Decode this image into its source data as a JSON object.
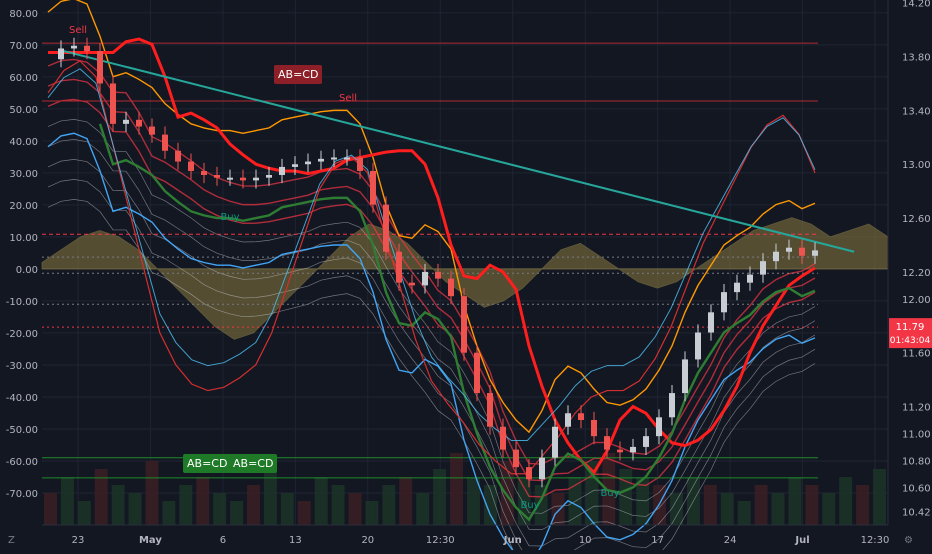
{
  "chart_data": {
    "type": "line",
    "theme": "dark",
    "left_axis": {
      "ticks": [
        "80.00",
        "70.00",
        "60.00",
        "50.00",
        "40.00",
        "30.00",
        "20.00",
        "10.00",
        "0.00",
        "-10.00",
        "-20.00",
        "-30.00",
        "-40.00",
        "-50.00",
        "-60.00",
        "-70.00"
      ],
      "range": [
        -80,
        84
      ]
    },
    "right_axis": {
      "ticks": [
        "14.20",
        "13.80",
        "13.40",
        "13.00",
        "12.60",
        "12.20",
        "12.00",
        "11.60",
        "11.20",
        "11.00",
        "10.80",
        "10.60",
        "10.42"
      ],
      "range": [
        10.32,
        14.22
      ],
      "last_price": "11.79",
      "countdown": "01:43:04"
    },
    "x_axis": {
      "ticks": [
        "23",
        "May",
        "6",
        "13",
        "20",
        "12:30",
        "Jun",
        "10",
        "17",
        "24",
        "Jul",
        "12:30"
      ]
    },
    "annotations": [
      {
        "text": "Sell",
        "color": "#f23645"
      },
      {
        "text": "Sell",
        "color": "#f23645"
      },
      {
        "text": "Buy",
        "color": "#089981"
      },
      {
        "text": "Buy",
        "color": "#089981"
      },
      {
        "text": "Buy",
        "color": "#089981"
      }
    ],
    "patterns": [
      {
        "label": "AB=CD",
        "color": "#b22833"
      },
      {
        "label": "AB=CD",
        "color": "#1e8a2a"
      },
      {
        "label": "AB=CD",
        "color": "#1e8a2a"
      }
    ],
    "horizontal_levels": [
      {
        "value": 13.9,
        "color": "#b22833",
        "style": "solid"
      },
      {
        "value": 13.47,
        "color": "#b22833",
        "style": "solid"
      },
      {
        "value": 12.48,
        "color": "#f23645",
        "style": "dashed"
      },
      {
        "value": 12.31,
        "color": "#787b86",
        "style": "dotted"
      },
      {
        "value": 12.19,
        "color": "#787b86",
        "style": "dotted"
      },
      {
        "value": 11.96,
        "color": "#787b86",
        "style": "dotted"
      },
      {
        "value": 11.79,
        "color": "#f23645",
        "style": "dotted"
      },
      {
        "value": 10.82,
        "color": "#1e8a2a",
        "style": "solid"
      },
      {
        "value": 10.67,
        "color": "#1e8a2a",
        "style": "solid"
      }
    ],
    "trendline": {
      "from": [
        0.02,
        13.85
      ],
      "to": [
        0.96,
        12.35
      ],
      "color": "#26a69a"
    },
    "close_series": [
      13.78,
      13.86,
      13.88,
      13.84,
      13.6,
      13.3,
      13.33,
      13.28,
      13.22,
      13.1,
      13.02,
      12.95,
      12.92,
      12.9,
      12.9,
      12.88,
      12.9,
      12.92,
      12.98,
      13.0,
      13.02,
      13.04,
      13.05,
      13.05,
      12.95,
      12.7,
      12.35,
      12.12,
      12.1,
      12.2,
      12.15,
      12.02,
      11.6,
      11.3,
      11.05,
      10.88,
      10.75,
      10.66,
      10.82,
      11.05,
      11.15,
      11.1,
      10.98,
      10.88,
      10.86,
      10.9,
      10.98,
      11.12,
      11.3,
      11.55,
      11.75,
      11.9,
      12.05,
      12.12,
      12.18,
      12.28,
      12.35,
      12.38,
      12.32,
      12.36
    ],
    "oscillator": [
      55,
      62,
      65,
      60,
      40,
      20,
      0,
      -20,
      -30,
      -36,
      -38,
      -37,
      -34,
      -30,
      -20,
      -5,
      10,
      25,
      33,
      35,
      30,
      12,
      -5,
      -22,
      -35,
      -42,
      -48,
      -55,
      -60,
      -64,
      -64,
      -58,
      -52,
      -45,
      -40,
      -38,
      -38,
      -35,
      -28,
      -18,
      -5,
      8,
      18,
      28,
      38,
      45,
      48,
      42,
      30
    ],
    "histogram": [
      2,
      6,
      10,
      12,
      10,
      6,
      0,
      -6,
      -12,
      -18,
      -22,
      -20,
      -14,
      -8,
      -2,
      4,
      10,
      14,
      12,
      8,
      2,
      -4,
      -8,
      -12,
      -10,
      -6,
      0,
      6,
      8,
      4,
      0,
      -4,
      -6,
      -4,
      0,
      4,
      8,
      12,
      14,
      16,
      14,
      10,
      12,
      14,
      10
    ],
    "volume": [
      4,
      6,
      3,
      7,
      5,
      4,
      8,
      3,
      5,
      6,
      4,
      3,
      5,
      7,
      4,
      3,
      6,
      5,
      4,
      3,
      5,
      6,
      4,
      7,
      9,
      6,
      5,
      8,
      6,
      5,
      4,
      6,
      8,
      9,
      7,
      6,
      5,
      4,
      6,
      5,
      4,
      3,
      5,
      4,
      6,
      5,
      4,
      6,
      5,
      7
    ],
    "colors": {
      "background": "#131722",
      "grid": "#1f2433",
      "up_candle": "#c8cdd4",
      "down_candle": "#ef5350",
      "ribbon": "#d1d4dc",
      "ribbon_red": "#f23645",
      "orange": "#ff9800",
      "blue": "#42a5f5",
      "green": "#2e7d32",
      "oscillator_fill": "#8a7a3e"
    }
  }
}
